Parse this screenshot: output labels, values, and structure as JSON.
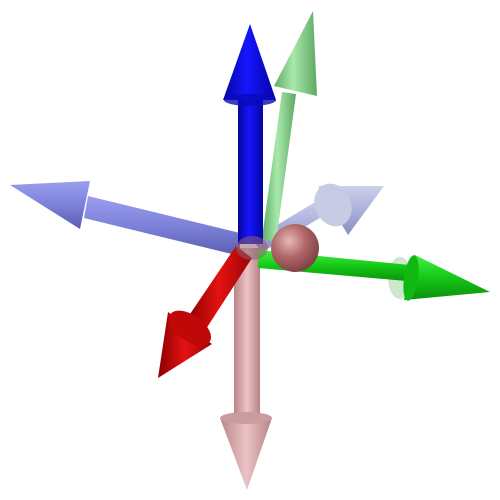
{
  "diagram": {
    "type": "3d-axes-arrows",
    "arrows": [
      {
        "name": "blue-up-arrow",
        "color": "#0a0ad2",
        "opacity": 1.0
      },
      {
        "name": "light-green-up-arrow",
        "color": "#7fcf85",
        "opacity": 0.95
      },
      {
        "name": "lavender-left-arrow",
        "color": "#7b7fd6",
        "opacity": 0.95
      },
      {
        "name": "lavender-back-arrow",
        "color": "#9ea2d6",
        "opacity": 0.85
      },
      {
        "name": "green-right-arrow",
        "color": "#16cf16",
        "opacity": 1.0
      },
      {
        "name": "faded-green-right-arrow",
        "color": "#a8d8a8",
        "opacity": 0.6
      },
      {
        "name": "red-down-left-arrow",
        "color": "#d40a0a",
        "opacity": 1.0
      },
      {
        "name": "pink-down-arrow",
        "color": "#d6a3a6",
        "opacity": 0.95
      }
    ],
    "origin_sphere_color": "#b36a6c"
  }
}
